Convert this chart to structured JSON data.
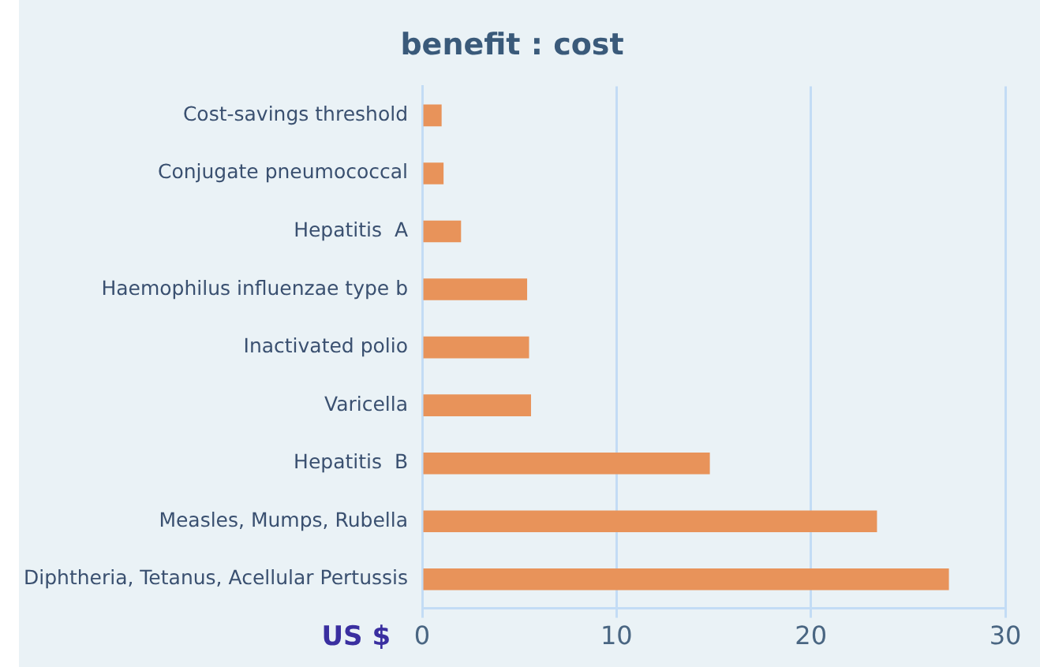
{
  "chart_data": {
    "type": "bar",
    "orientation": "horizontal",
    "title": "benefit : cost",
    "xlabel": "US $",
    "categories": [
      "Cost-savings threshold",
      "Conjugate pneumococcal",
      "Hepatitis  A",
      "Haemophilus influenzae type b",
      "Inactivated polio",
      "Varicella",
      "Hepatitis  B",
      "Measles, Mumps, Rubella",
      "Diphtheria, Tetanus, Acellular Pertussis"
    ],
    "values": [
      1.0,
      1.1,
      2.0,
      5.4,
      5.5,
      5.6,
      14.8,
      23.4,
      27.1
    ],
    "color": "#e8935a",
    "xlim": [
      0,
      30
    ],
    "xticks": [
      0,
      10,
      20,
      30
    ],
    "grid": "x",
    "legend": false
  }
}
